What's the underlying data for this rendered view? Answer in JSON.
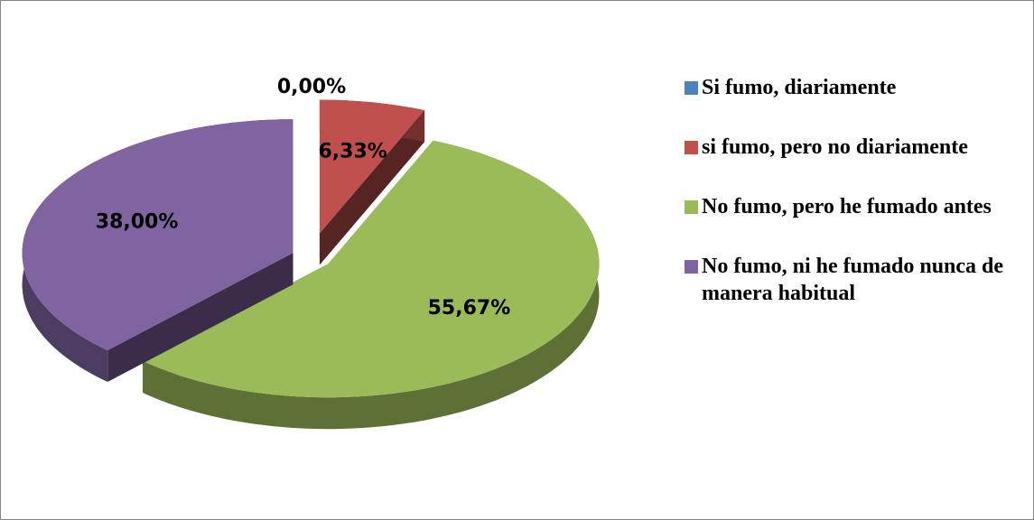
{
  "chart_data": {
    "type": "pie",
    "categories": [
      "Si fumo, diariamente",
      "si fumo, pero no diariamente",
      "No fumo, pero he fumado antes",
      "No fumo, ni he fumado nunca de manera habitual"
    ],
    "values": [
      0,
      6.33,
      55.67,
      38
    ],
    "value_labels": [
      "0,00%",
      "6,33%",
      "55,67%",
      "38,00%"
    ],
    "colors": [
      "#4f81bd",
      "#c0504d",
      "#9bbb59",
      "#8064a2"
    ],
    "legend": "right"
  }
}
